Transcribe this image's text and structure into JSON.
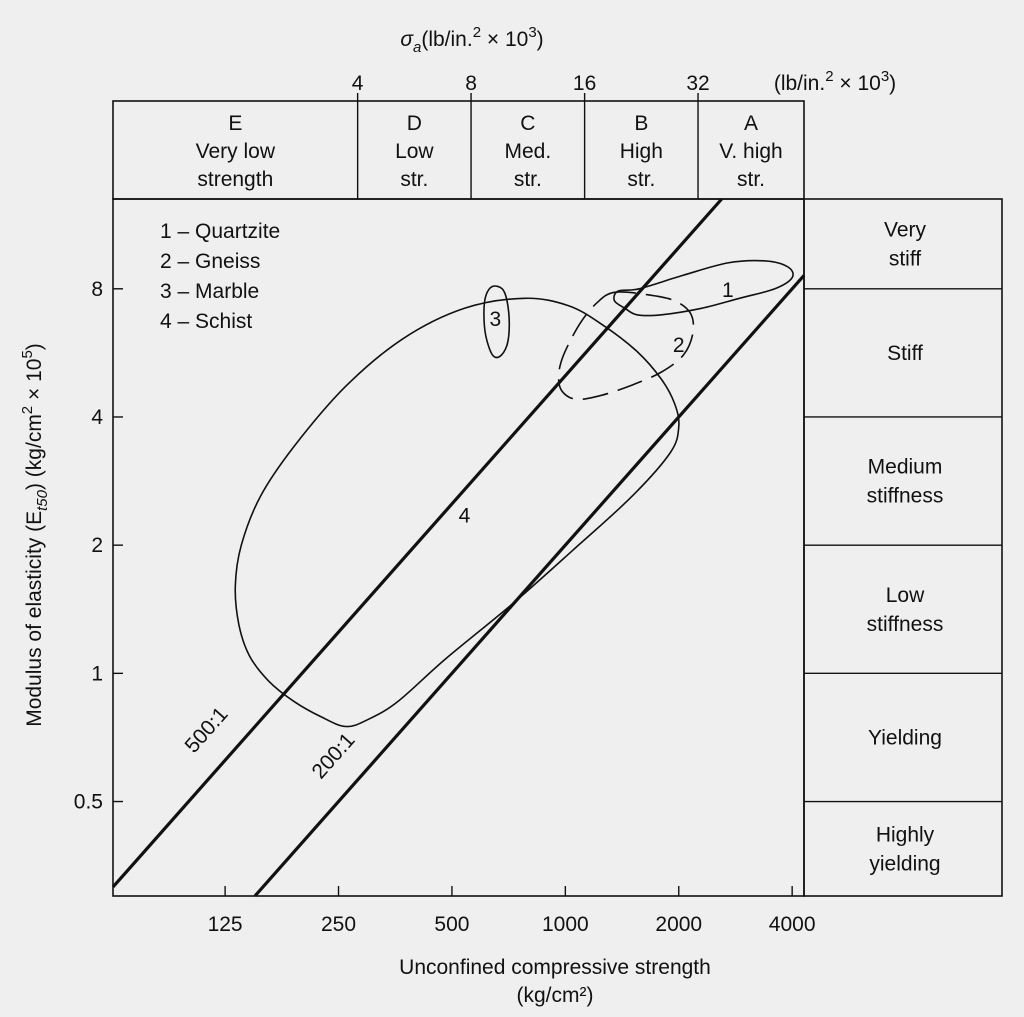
{
  "chart_data": {
    "type": "scatter",
    "x_scale": "log",
    "y_scale": "log",
    "xlabel": "Unconfined compressive strength",
    "xlabel_unit": "(kg/cm²)",
    "ylabel": "Modulus of elasticity (E",
    "ylabel_sub": "t50",
    "ylabel_rest": ") (kg/cm",
    "ylabel_sup": "2",
    "ylabel_end": " × 10",
    "ylabel_exp": "5",
    "ylabel_close": ")",
    "xlim": [
      63,
      4300
    ],
    "ylim": [
      0.3,
      13
    ],
    "x_ticks": [
      {
        "v": 125,
        "label": "125"
      },
      {
        "v": 250,
        "label": "250"
      },
      {
        "v": 500,
        "label": "500"
      },
      {
        "v": 1000,
        "label": "1000"
      },
      {
        "v": 2000,
        "label": "2000"
      },
      {
        "v": 4000,
        "label": "4000"
      }
    ],
    "y_ticks": [
      {
        "v": 0.5,
        "label": "0.5"
      },
      {
        "v": 1,
        "label": "1"
      },
      {
        "v": 2,
        "label": "2"
      },
      {
        "v": 4,
        "label": "4"
      },
      {
        "v": 8,
        "label": "8"
      }
    ],
    "top_axis": {
      "label_main": "σ",
      "label_sub": "a",
      "label_rest": "(lb/in.",
      "label_sup": "2",
      "label_end": " × 10",
      "label_exp": "3",
      "label_close": ")",
      "unit_main": "(lb/in.",
      "unit_sup": "2",
      "unit_end": " × 10",
      "unit_exp": "3",
      "unit_close": ")",
      "ticks": [
        {
          "v": 281,
          "label": "4"
        },
        {
          "v": 562,
          "label": "8"
        },
        {
          "v": 1125,
          "label": "16"
        },
        {
          "v": 2250,
          "label": "32"
        }
      ]
    },
    "strength_classes": [
      {
        "from": 63,
        "to": 281,
        "lines": [
          "E",
          "Very low",
          "strength"
        ]
      },
      {
        "from": 281,
        "to": 562,
        "lines": [
          "D",
          "Low",
          "str."
        ]
      },
      {
        "from": 562,
        "to": 1125,
        "lines": [
          "C",
          "Med.",
          "str."
        ]
      },
      {
        "from": 1125,
        "to": 2250,
        "lines": [
          "B",
          "High",
          "str."
        ]
      },
      {
        "from": 2250,
        "to": 4300,
        "lines": [
          "A",
          "V. high",
          "str."
        ]
      }
    ],
    "stiffness_classes": [
      {
        "from": 8,
        "to": 13,
        "lines": [
          "Very",
          "stiff"
        ]
      },
      {
        "from": 4,
        "to": 8,
        "lines": [
          "Stiff"
        ]
      },
      {
        "from": 2,
        "to": 4,
        "lines": [
          "Medium",
          "stiffness"
        ]
      },
      {
        "from": 1,
        "to": 2,
        "lines": [
          "Low",
          "stiffness"
        ]
      },
      {
        "from": 0.5,
        "to": 1,
        "lines": [
          "Yielding"
        ]
      },
      {
        "from": 0.3,
        "to": 0.5,
        "lines": [
          "Highly",
          "yielding"
        ]
      }
    ],
    "ratio_lines": [
      {
        "label": "500:1",
        "ratio": 500,
        "label_x": 115
      },
      {
        "label": "200:1",
        "ratio": 200,
        "label_x": 250
      }
    ],
    "legend_location": "top-left",
    "legend": [
      {
        "number": "1",
        "name": "1 – Quartzite"
      },
      {
        "number": "2",
        "name": "2 – Gneiss"
      },
      {
        "number": "3",
        "name": "3 – Marble"
      },
      {
        "number": "4",
        "name": "4 – Schist"
      }
    ],
    "regions": [
      {
        "id": "4",
        "name": "Schist",
        "dashed": false,
        "label_pos": [
          540,
          2.35
        ],
        "points": [
          [
            262,
            0.75
          ],
          [
            225,
            0.79
          ],
          [
            190,
            0.86
          ],
          [
            163,
            0.96
          ],
          [
            145,
            1.1
          ],
          [
            136,
            1.3
          ],
          [
            133,
            1.6
          ],
          [
            138,
            2
          ],
          [
            155,
            2.6
          ],
          [
            190,
            3.4
          ],
          [
            260,
            4.7
          ],
          [
            370,
            6.1
          ],
          [
            540,
            7.2
          ],
          [
            780,
            7.6
          ],
          [
            1020,
            7.3
          ],
          [
            1250,
            6.6
          ],
          [
            1550,
            5.7
          ],
          [
            1800,
            4.9
          ],
          [
            1950,
            4.3
          ],
          [
            2000,
            3.8
          ],
          [
            1900,
            3.3
          ],
          [
            1500,
            2.6
          ],
          [
            1050,
            1.95
          ],
          [
            720,
            1.45
          ],
          [
            480,
            1.08
          ],
          [
            360,
            0.86
          ],
          [
            300,
            0.78
          ]
        ]
      },
      {
        "id": "3",
        "name": "Marble",
        "dashed": false,
        "label_pos": [
          652,
          6.8
        ],
        "points": [
          [
            640,
            8.1
          ],
          [
            680,
            8
          ],
          [
            700,
            7.5
          ],
          [
            710,
            6.6
          ],
          [
            700,
            5.9
          ],
          [
            670,
            5.55
          ],
          [
            640,
            5.6
          ],
          [
            615,
            6.2
          ],
          [
            608,
            7
          ],
          [
            615,
            7.7
          ]
        ]
      },
      {
        "id": "2",
        "name": "Gneiss",
        "dashed": true,
        "label_pos": [
          2000,
          5.9
        ],
        "points": [
          [
            1350,
            7.85
          ],
          [
            1210,
            7.4
          ],
          [
            1090,
            6.6
          ],
          [
            990,
            5.6
          ],
          [
            960,
            5
          ],
          [
            980,
            4.6
          ],
          [
            1070,
            4.4
          ],
          [
            1250,
            4.5
          ],
          [
            1500,
            4.75
          ],
          [
            1800,
            5.1
          ],
          [
            2060,
            5.6
          ],
          [
            2180,
            6.3
          ],
          [
            2150,
            7
          ],
          [
            1950,
            7.5
          ],
          [
            1650,
            7.75
          ]
        ]
      },
      {
        "id": "1",
        "name": "Quartzite",
        "dashed": false,
        "label_pos": [
          2700,
          7.95
        ],
        "points": [
          [
            1440,
            7.2
          ],
          [
            1350,
            7.5
          ],
          [
            1380,
            7.9
          ],
          [
            1570,
            8
          ],
          [
            2050,
            8.6
          ],
          [
            2700,
            9.2
          ],
          [
            3400,
            9.3
          ],
          [
            3900,
            9
          ],
          [
            4000,
            8.5
          ],
          [
            3600,
            8
          ],
          [
            2900,
            7.6
          ],
          [
            2300,
            7.2
          ],
          [
            1800,
            6.95
          ],
          [
            1550,
            6.95
          ]
        ]
      }
    ]
  }
}
